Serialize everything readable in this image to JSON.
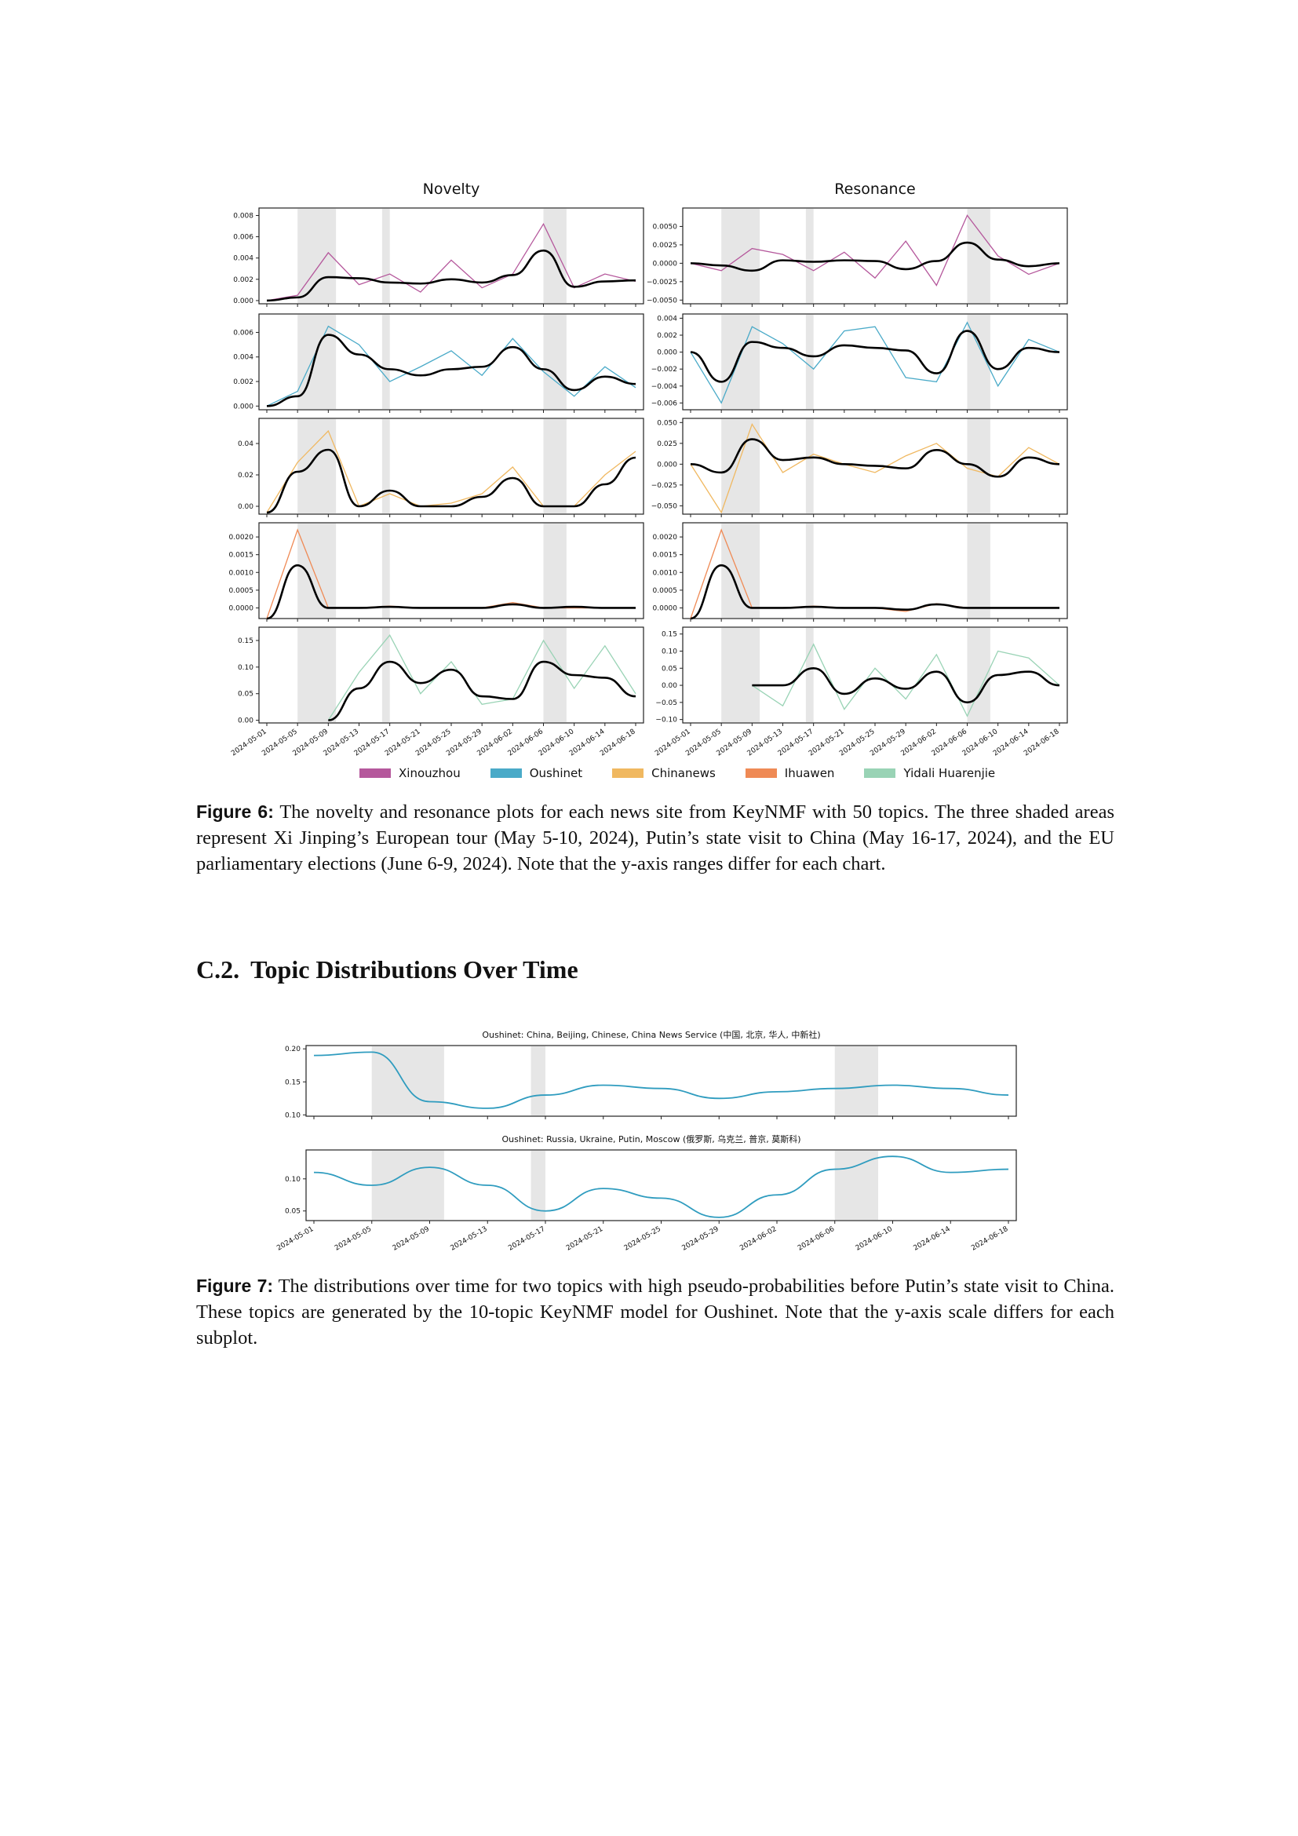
{
  "figure6": {
    "column_titles": [
      "Novelty",
      "Resonance"
    ],
    "legend": [
      {
        "label": "Xinouzhou",
        "color": "#b5589c"
      },
      {
        "label": "Oushinet",
        "color": "#4aaac8"
      },
      {
        "label": "Chinanews",
        "color": "#f0b860"
      },
      {
        "label": "Ihuawen",
        "color": "#ef8a55"
      },
      {
        "label": "Yidali Huarenjie",
        "color": "#99d3b5"
      }
    ],
    "caption_label": "Figure 6:",
    "caption_text": "The novelty and resonance plots for each news site from KeyNMF with 50 topics. The three shaded areas represent Xi Jinping’s European tour (May 5-10, 2024), Putin’s state visit to China (May 16-17, 2024), and the EU parliamentary elections (June 6-9, 2024). Note that the y-axis ranges differ for each chart."
  },
  "section": {
    "number": "C.2.",
    "title": "Topic Distributions Over Time"
  },
  "figure7": {
    "caption_label": "Figure 7:",
    "caption_text": "The distributions over time for two topics with high pseudo-probabilities before Putin’s state visit to China. These topics are generated by the 10-topic KeyNMF model for Oushinet. Note that the y-axis scale differs for each subplot."
  },
  "chart_data": [
    {
      "type": "line",
      "panel": "Novelty - Xinouzhou",
      "series_name": "Xinouzhou",
      "color": "#b5589c",
      "yticks": [
        "0.000",
        "0.002",
        "0.004",
        "0.006",
        "0.008"
      ],
      "ylim": [
        -0.0003,
        0.0087
      ],
      "x": [
        "2024-05-01",
        "2024-05-05",
        "2024-05-09",
        "2024-05-13",
        "2024-05-17",
        "2024-05-21",
        "2024-05-25",
        "2024-05-29",
        "2024-06-02",
        "2024-06-06",
        "2024-06-10",
        "2024-06-14",
        "2024-06-18"
      ],
      "smooth": [
        0.0,
        0.0003,
        0.0022,
        0.0021,
        0.0017,
        0.0016,
        0.002,
        0.0017,
        0.0024,
        0.0047,
        0.0013,
        0.0018,
        0.0019
      ],
      "raw": [
        0.0,
        0.0005,
        0.0045,
        0.0015,
        0.0025,
        0.0008,
        0.0038,
        0.0012,
        0.0025,
        0.0072,
        0.0012,
        0.0025,
        0.0018
      ]
    },
    {
      "type": "line",
      "panel": "Resonance - Xinouzhou",
      "series_name": "Xinouzhou",
      "color": "#b5589c",
      "yticks": [
        "−0.0050",
        "−0.0025",
        "0.0000",
        "0.0025",
        "0.0050"
      ],
      "ylim": [
        -0.0055,
        0.0075
      ],
      "x": [
        "2024-05-01",
        "2024-05-05",
        "2024-05-09",
        "2024-05-13",
        "2024-05-17",
        "2024-05-21",
        "2024-05-25",
        "2024-05-29",
        "2024-06-02",
        "2024-06-06",
        "2024-06-10",
        "2024-06-14",
        "2024-06-18"
      ],
      "smooth": [
        0.0,
        -0.0003,
        -0.001,
        0.0004,
        0.0002,
        0.0004,
        0.0003,
        -0.0008,
        0.0003,
        0.0028,
        0.0005,
        -0.0004,
        0.0
      ],
      "raw": [
        0.0,
        -0.001,
        0.002,
        0.0012,
        -0.001,
        0.0015,
        -0.002,
        0.003,
        -0.003,
        0.0065,
        0.001,
        -0.0015,
        0.0
      ]
    },
    {
      "type": "line",
      "panel": "Novelty - Oushinet",
      "series_name": "Oushinet",
      "color": "#4aaac8",
      "yticks": [
        "0.000",
        "0.002",
        "0.004",
        "0.006"
      ],
      "ylim": [
        -0.0003,
        0.0075
      ],
      "x": [
        "2024-05-01",
        "2024-05-05",
        "2024-05-09",
        "2024-05-13",
        "2024-05-17",
        "2024-05-21",
        "2024-05-25",
        "2024-05-29",
        "2024-06-02",
        "2024-06-06",
        "2024-06-10",
        "2024-06-14",
        "2024-06-18"
      ],
      "smooth": [
        0.0,
        0.0008,
        0.0058,
        0.0042,
        0.003,
        0.0025,
        0.003,
        0.0032,
        0.0048,
        0.003,
        0.0013,
        0.0024,
        0.0018
      ],
      "raw": [
        0.0,
        0.0012,
        0.0065,
        0.005,
        0.002,
        0.0032,
        0.0045,
        0.0025,
        0.0055,
        0.0028,
        0.0008,
        0.0032,
        0.0015
      ]
    },
    {
      "type": "line",
      "panel": "Resonance - Oushinet",
      "series_name": "Oushinet",
      "color": "#4aaac8",
      "yticks": [
        "−0.006",
        "−0.004",
        "−0.002",
        "0.000",
        "0.002",
        "0.004"
      ],
      "ylim": [
        -0.0068,
        0.0045
      ],
      "x": [
        "2024-05-01",
        "2024-05-05",
        "2024-05-09",
        "2024-05-13",
        "2024-05-17",
        "2024-05-21",
        "2024-05-25",
        "2024-05-29",
        "2024-06-02",
        "2024-06-06",
        "2024-06-10",
        "2024-06-14",
        "2024-06-18"
      ],
      "smooth": [
        0.0,
        -0.0035,
        0.0012,
        0.0005,
        -0.0005,
        0.0008,
        0.0005,
        0.0002,
        -0.0025,
        0.0025,
        -0.002,
        0.0005,
        0.0
      ],
      "raw": [
        0.0,
        -0.006,
        0.003,
        0.001,
        -0.002,
        0.0025,
        0.003,
        -0.003,
        -0.0035,
        0.0035,
        -0.004,
        0.0015,
        0.0
      ]
    },
    {
      "type": "line",
      "panel": "Novelty - Chinanews",
      "series_name": "Chinanews",
      "color": "#f0b860",
      "yticks": [
        "0.00",
        "0.02",
        "0.04"
      ],
      "ylim": [
        -0.005,
        0.056
      ],
      "x": [
        "2024-05-01",
        "2024-05-05",
        "2024-05-09",
        "2024-05-13",
        "2024-05-17",
        "2024-05-21",
        "2024-05-25",
        "2024-05-29",
        "2024-06-02",
        "2024-06-06",
        "2024-06-10",
        "2024-06-14",
        "2024-06-18"
      ],
      "smooth": [
        -0.004,
        0.022,
        0.036,
        0.0,
        0.01,
        0.0,
        0.0,
        0.006,
        0.018,
        0.0,
        0.0,
        0.014,
        0.031
      ],
      "raw": [
        -0.004,
        0.028,
        0.048,
        0.0,
        0.008,
        0.0,
        0.002,
        0.008,
        0.025,
        0.0,
        0.0,
        0.02,
        0.035
      ]
    },
    {
      "type": "line",
      "panel": "Resonance - Chinanews",
      "series_name": "Chinanews",
      "color": "#f0b860",
      "yticks": [
        "−0.050",
        "−0.025",
        "0.000",
        "0.025",
        "0.050"
      ],
      "ylim": [
        -0.06,
        0.055
      ],
      "x": [
        "2024-05-01",
        "2024-05-05",
        "2024-05-09",
        "2024-05-13",
        "2024-05-17",
        "2024-05-21",
        "2024-05-25",
        "2024-05-29",
        "2024-06-02",
        "2024-06-06",
        "2024-06-10",
        "2024-06-14",
        "2024-06-18"
      ],
      "smooth": [
        0.0,
        -0.01,
        0.03,
        0.005,
        0.008,
        0.0,
        -0.002,
        -0.005,
        0.017,
        0.0,
        -0.015,
        0.008,
        0.0
      ],
      "raw": [
        0.0,
        -0.058,
        0.048,
        -0.01,
        0.012,
        0.0,
        -0.01,
        0.01,
        0.025,
        -0.005,
        -0.015,
        0.02,
        0.0
      ]
    },
    {
      "type": "line",
      "panel": "Novelty - Ihuawen",
      "series_name": "Ihuawen",
      "color": "#ef8a55",
      "yticks": [
        "0.0000",
        "0.0005",
        "0.0010",
        "0.0015",
        "0.0020"
      ],
      "ylim": [
        -0.0003,
        0.0024
      ],
      "x": [
        "2024-05-01",
        "2024-05-05",
        "2024-05-09",
        "2024-05-13",
        "2024-05-17",
        "2024-05-21",
        "2024-05-25",
        "2024-05-29",
        "2024-06-02",
        "2024-06-06",
        "2024-06-10",
        "2024-06-14",
        "2024-06-18"
      ],
      "smooth": [
        -0.0003,
        0.0012,
        0.0,
        0.0,
        3e-05,
        0.0,
        0.0,
        0.0,
        0.0001,
        0.0,
        3e-05,
        0.0,
        0.0
      ],
      "raw": [
        -0.0003,
        0.0022,
        0.0,
        0.0,
        5e-05,
        0.0,
        0.0,
        0.0,
        0.00015,
        0.0,
        0.0,
        0.0,
        0.0
      ]
    },
    {
      "type": "line",
      "panel": "Resonance - Ihuawen",
      "series_name": "Ihuawen",
      "color": "#ef8a55",
      "yticks": [
        "0.0000",
        "0.0005",
        "0.0010",
        "0.0015",
        "0.0020"
      ],
      "ylim": [
        -0.0003,
        0.0024
      ],
      "x": [
        "2024-05-01",
        "2024-05-05",
        "2024-05-09",
        "2024-05-13",
        "2024-05-17",
        "2024-05-21",
        "2024-05-25",
        "2024-05-29",
        "2024-06-02",
        "2024-06-06",
        "2024-06-10",
        "2024-06-14",
        "2024-06-18"
      ],
      "smooth": [
        -0.0003,
        0.0012,
        0.0,
        0.0,
        3e-05,
        0.0,
        0.0,
        -5e-05,
        0.0001,
        0.0,
        0.0,
        0.0,
        0.0
      ],
      "raw": [
        -0.0003,
        0.0022,
        0.0,
        0.0,
        5e-05,
        0.0,
        0.0,
        -0.0001,
        0.00012,
        0.0,
        0.0,
        0.0,
        0.0
      ]
    },
    {
      "type": "line",
      "panel": "Novelty - Yidali Huarenjie",
      "series_name": "Yidali Huarenjie",
      "color": "#99d3b5",
      "yticks": [
        "0.00",
        "0.05",
        "0.10",
        "0.15"
      ],
      "ylim": [
        -0.005,
        0.175
      ],
      "x": [
        "2024-05-01",
        "2024-05-05",
        "2024-05-09",
        "2024-05-13",
        "2024-05-17",
        "2024-05-21",
        "2024-05-25",
        "2024-05-29",
        "2024-06-02",
        "2024-06-06",
        "2024-06-10",
        "2024-06-14",
        "2024-06-18"
      ],
      "smooth": [
        null,
        null,
        0.0,
        0.06,
        0.11,
        0.07,
        0.095,
        0.045,
        0.04,
        0.11,
        0.085,
        0.08,
        0.045
      ],
      "raw": [
        null,
        null,
        0.0,
        0.09,
        0.16,
        0.05,
        0.11,
        0.03,
        0.04,
        0.15,
        0.06,
        0.14,
        0.05
      ]
    },
    {
      "type": "line",
      "panel": "Resonance - Yidali Huarenjie",
      "series_name": "Yidali Huarenjie",
      "color": "#99d3b5",
      "yticks": [
        "−0.10",
        "−0.05",
        "0.00",
        "0.05",
        "0.10",
        "0.15"
      ],
      "ylim": [
        -0.11,
        0.17
      ],
      "x": [
        "2024-05-01",
        "2024-05-05",
        "2024-05-09",
        "2024-05-13",
        "2024-05-17",
        "2024-05-21",
        "2024-05-25",
        "2024-05-29",
        "2024-06-02",
        "2024-06-06",
        "2024-06-10",
        "2024-06-14",
        "2024-06-18"
      ],
      "smooth": [
        null,
        null,
        0.0,
        0.0,
        0.05,
        -0.025,
        0.02,
        -0.01,
        0.04,
        -0.05,
        0.03,
        0.04,
        0.0
      ],
      "raw": [
        null,
        null,
        0.0,
        -0.06,
        0.12,
        -0.07,
        0.05,
        -0.04,
        0.09,
        -0.09,
        0.1,
        0.08,
        0.0
      ]
    },
    {
      "type": "line",
      "panel": "Oushinet topic China",
      "title": "Oushinet: China, Beijing, Chinese, China News Service (中国, 北京, 华人, 中新社)",
      "series_name": "Oushinet",
      "color": "#2f9cbf",
      "yticks": [
        "0.10",
        "0.15",
        "0.20"
      ],
      "ylim": [
        0.098,
        0.205
      ],
      "x": [
        "2024-05-01",
        "2024-05-05",
        "2024-05-09",
        "2024-05-13",
        "2024-05-17",
        "2024-05-21",
        "2024-05-25",
        "2024-05-29",
        "2024-06-02",
        "2024-06-06",
        "2024-06-10",
        "2024-06-14",
        "2024-06-18"
      ],
      "values": [
        0.19,
        0.195,
        0.12,
        0.11,
        0.13,
        0.145,
        0.14,
        0.125,
        0.135,
        0.14,
        0.145,
        0.14,
        0.13
      ]
    },
    {
      "type": "line",
      "panel": "Oushinet topic Russia",
      "title": "Oushinet: Russia, Ukraine, Putin, Moscow (俄罗斯, 乌克兰, 普京, 莫斯科)",
      "series_name": "Oushinet",
      "color": "#2f9cbf",
      "yticks": [
        "0.05",
        "0.10"
      ],
      "ylim": [
        0.035,
        0.145
      ],
      "x": [
        "2024-05-01",
        "2024-05-05",
        "2024-05-09",
        "2024-05-13",
        "2024-05-17",
        "2024-05-21",
        "2024-05-25",
        "2024-05-29",
        "2024-06-02",
        "2024-06-06",
        "2024-06-10",
        "2024-06-14",
        "2024-06-18"
      ],
      "values": [
        0.11,
        0.09,
        0.118,
        0.09,
        0.05,
        0.085,
        0.07,
        0.04,
        0.075,
        0.115,
        0.135,
        0.11,
        0.115
      ]
    }
  ],
  "x_tick_labels": [
    "2024-05-01",
    "2024-05-05",
    "2024-05-09",
    "2024-05-13",
    "2024-05-17",
    "2024-05-21",
    "2024-05-25",
    "2024-05-29",
    "2024-06-02",
    "2024-06-06",
    "2024-06-10",
    "2024-06-14",
    "2024-06-18"
  ]
}
